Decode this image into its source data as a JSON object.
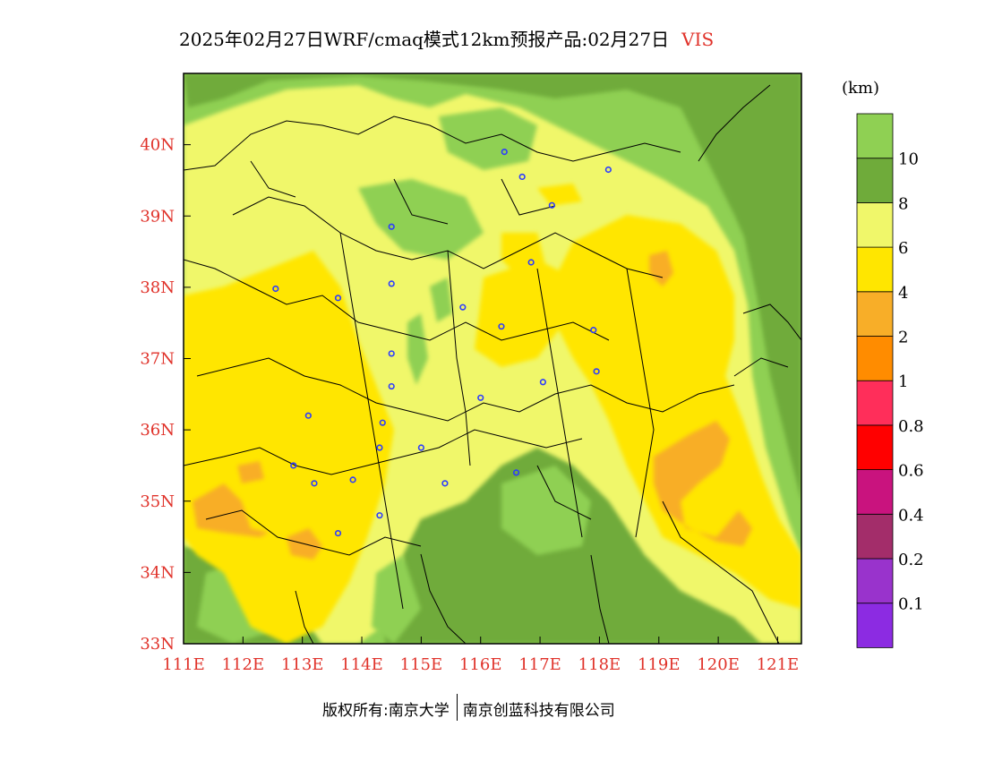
{
  "title": {
    "text": "2025年02月27日WRF/cmaq模式12km预报产品:02月27日",
    "variable": "VIS"
  },
  "map": {
    "lon_range": [
      111,
      121.4
    ],
    "lat_range": [
      33,
      41
    ],
    "lon_ticks": [
      "111E",
      "112E",
      "113E",
      "114E",
      "115E",
      "116E",
      "117E",
      "118E",
      "119E",
      "120E",
      "121E"
    ],
    "lat_ticks": [
      "33N",
      "34N",
      "35N",
      "36N",
      "37N",
      "38N",
      "39N",
      "40N"
    ]
  },
  "legend": {
    "unit": "(km)",
    "colors": [
      "#8c2be2",
      "#9933cc",
      "#a32d6a",
      "#c9137e",
      "#ff0000",
      "#ff2e5a",
      "#ff8c00",
      "#f8ae28",
      "#ffe600",
      "#f0f76a",
      "#6fab3a",
      "#8fd053"
    ],
    "labels": [
      "0.1",
      "0.2",
      "0.4",
      "0.6",
      "0.8",
      "1",
      "2",
      "4",
      "6",
      "8",
      "10"
    ]
  },
  "footer": {
    "left": "版权所有:南京大学",
    "right": "南京创蓝科技有限公司"
  },
  "stations": [
    [
      116.4,
      39.9
    ],
    [
      116.7,
      39.55
    ],
    [
      118.15,
      39.65
    ],
    [
      117.2,
      39.15
    ],
    [
      114.5,
      38.85
    ],
    [
      116.85,
      38.35
    ],
    [
      112.55,
      37.98
    ],
    [
      113.6,
      37.85
    ],
    [
      114.5,
      38.05
    ],
    [
      115.7,
      37.72
    ],
    [
      116.35,
      37.45
    ],
    [
      117.9,
      37.4
    ],
    [
      114.5,
      37.07
    ],
    [
      117.95,
      36.82
    ],
    [
      114.5,
      36.61
    ],
    [
      117.05,
      36.67
    ],
    [
      116.0,
      36.45
    ],
    [
      113.1,
      36.2
    ],
    [
      114.35,
      36.1
    ],
    [
      112.85,
      35.5
    ],
    [
      114.3,
      35.75
    ],
    [
      115.0,
      35.75
    ],
    [
      113.2,
      35.25
    ],
    [
      113.85,
      35.3
    ],
    [
      115.4,
      35.25
    ],
    [
      116.6,
      35.4
    ],
    [
      114.3,
      34.8
    ],
    [
      113.6,
      34.55
    ]
  ]
}
